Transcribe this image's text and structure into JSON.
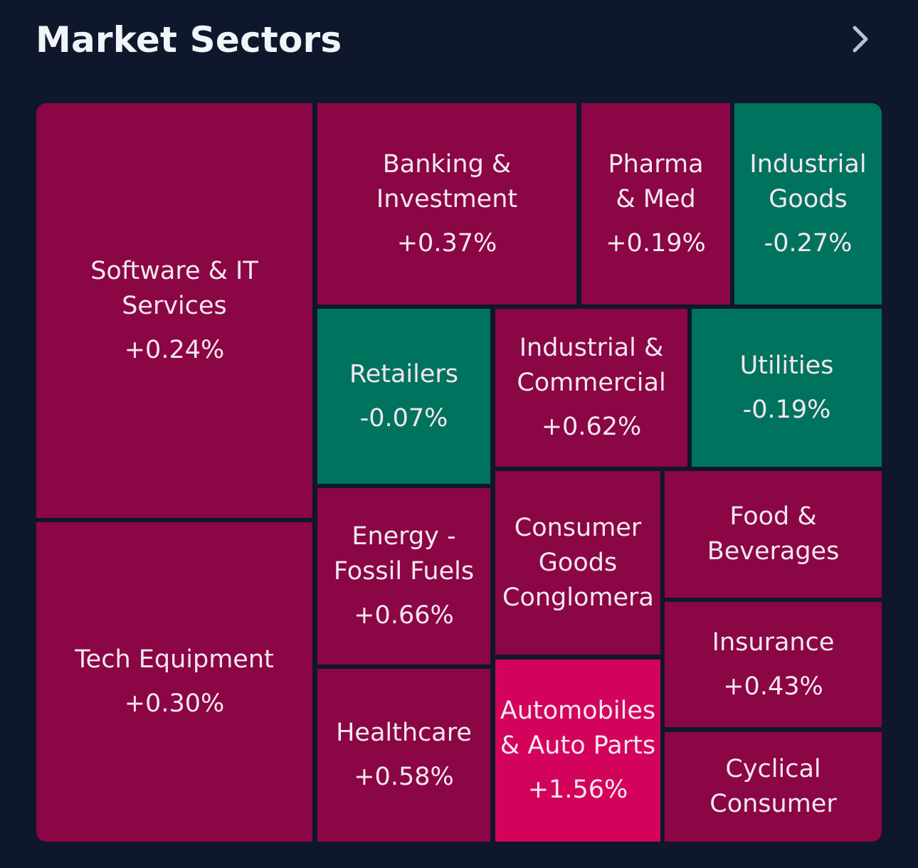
{
  "header": {
    "title": "Market Sectors",
    "chevron_icon": "chevron-right-icon"
  },
  "colors": {
    "background": "#0e172b",
    "up": "#8b0645",
    "up_strong": "#d3035b",
    "down": "#00735f",
    "text": "#f3e8ee"
  },
  "sectors": {
    "software": {
      "name": "Software & IT Services",
      "change": "+0.24%"
    },
    "tech_equipment": {
      "name": "Tech Equipment",
      "change": "+0.30%"
    },
    "banking": {
      "name": "Banking & Investment",
      "change": "+0.37%"
    },
    "pharma": {
      "name": "Pharma & Med",
      "change": "+0.19%"
    },
    "industrial_goods": {
      "name": "Industrial Goods",
      "change": "-0.27%"
    },
    "retailers": {
      "name": "Retailers",
      "change": "-0.07%"
    },
    "industrial_commercial": {
      "name": "Industrial & Commercial",
      "change": "+0.62%"
    },
    "utilities": {
      "name": "Utilities",
      "change": "-0.19%"
    },
    "energy": {
      "name": "Energy - Fossil Fuels",
      "change": "+0.66%"
    },
    "consumer_goods": {
      "name": "Consumer Goods Conglomerates",
      "change": ""
    },
    "food": {
      "name": "Food & Beverages",
      "change": ""
    },
    "healthcare": {
      "name": "Healthcare",
      "change": "+0.58%"
    },
    "automobiles": {
      "name": "Automobiles & Auto Parts",
      "change": "+1.56%"
    },
    "insurance": {
      "name": "Insurance",
      "change": "+0.43%"
    },
    "cyclical": {
      "name": "Cyclical Consumer",
      "change": ""
    }
  }
}
